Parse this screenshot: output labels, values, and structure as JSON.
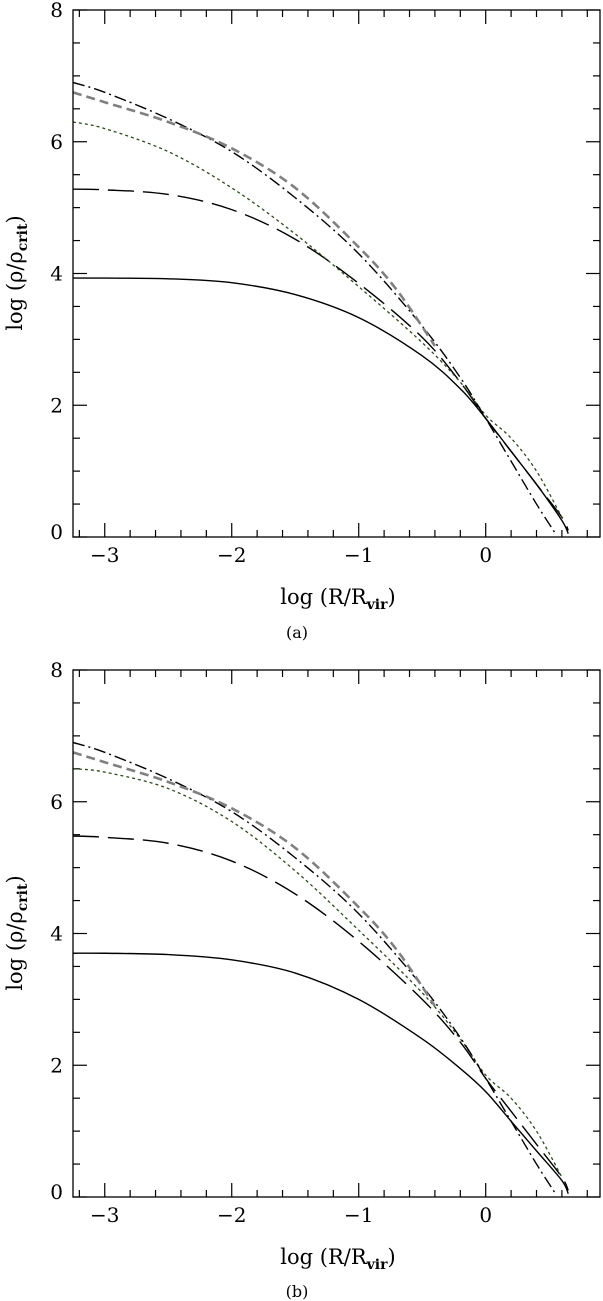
{
  "colors": {
    "black": "#000000",
    "grey": "#808080",
    "green_dotted": "#2e4a1e"
  },
  "chart_data": [
    {
      "type": "line",
      "caption": "(a)",
      "xlabel": "log (R/R_vir)",
      "xlabel_main": "log (R/R",
      "xlabel_sub": "vir",
      "xlabel_tail": ")",
      "ylabel": "log (ρ/ρ_crit)",
      "ylabel_main": "log (ρ/ρ",
      "ylabel_sub": "crit",
      "ylabel_tail": ")",
      "xlim": [
        -3.25,
        0.9
      ],
      "ylim": [
        0,
        8
      ],
      "xticks_major": [
        -3,
        -2,
        -1,
        0
      ],
      "xticks_minor": [
        -3.2,
        -2.8,
        -2.6,
        -2.4,
        -2.2,
        -1.8,
        -1.6,
        -1.4,
        -1.2,
        -0.8,
        -0.6,
        -0.4,
        -0.2,
        0.2,
        0.4,
        0.6,
        0.8
      ],
      "yticks_major": [
        0,
        2,
        4,
        6,
        8
      ],
      "yticks_minor": [
        0.5,
        1,
        1.5,
        2.5,
        3,
        3.5,
        4.5,
        5,
        5.5,
        6.5,
        7,
        7.5
      ],
      "xtick_labels": [
        "−3",
        "−2",
        "−1",
        "0"
      ],
      "ytick_labels": [
        "0",
        "2",
        "4",
        "6",
        "8"
      ],
      "series": [
        {
          "style": "solid",
          "color": "#000000",
          "x": [
            -3.25,
            -3.0,
            -2.5,
            -2.0,
            -1.5,
            -1.0,
            -0.5,
            -0.2,
            0.0,
            0.2,
            0.4,
            0.6,
            0.65
          ],
          "y": [
            3.93,
            3.93,
            3.92,
            3.86,
            3.68,
            3.33,
            2.75,
            2.25,
            1.8,
            1.3,
            0.8,
            0.25,
            0.05
          ]
        },
        {
          "style": "longdash",
          "color": "#000000",
          "x": [
            -3.25,
            -3.0,
            -2.5,
            -2.0,
            -1.5,
            -1.0,
            -0.5,
            -0.2,
            0.0,
            0.2,
            0.4,
            0.6,
            0.65
          ],
          "y": [
            5.28,
            5.27,
            5.2,
            4.97,
            4.52,
            3.85,
            3.03,
            2.35,
            1.8,
            1.3,
            0.8,
            0.3,
            0.1
          ]
        },
        {
          "style": "dotted",
          "color": "#2e4a1e",
          "x": [
            -3.25,
            -3.0,
            -2.5,
            -2.0,
            -1.5,
            -1.0,
            -0.5,
            -0.2,
            0.0,
            0.2,
            0.4,
            0.6
          ],
          "y": [
            6.3,
            6.2,
            5.85,
            5.3,
            4.6,
            3.8,
            2.95,
            2.35,
            1.85,
            1.5,
            1.0,
            0.3
          ]
        },
        {
          "style": "dashdot",
          "color": "#000000",
          "x": [
            -3.25,
            -3.0,
            -2.5,
            -2.0,
            -1.5,
            -1.0,
            -0.5,
            -0.2,
            0.0,
            0.2,
            0.4,
            0.55
          ],
          "y": [
            6.9,
            6.75,
            6.35,
            5.85,
            5.15,
            4.3,
            3.2,
            2.42,
            1.8,
            1.15,
            0.5,
            0.05
          ]
        },
        {
          "style": "dashed-grey",
          "color": "#808080",
          "x": [
            -3.25,
            -3.0,
            -2.5,
            -2.0,
            -1.5,
            -1.0,
            -0.7,
            -0.4
          ],
          "y": [
            6.75,
            6.6,
            6.3,
            5.9,
            5.3,
            4.4,
            3.75,
            2.9
          ]
        }
      ]
    },
    {
      "type": "line",
      "caption": "(b)",
      "xlabel": "log (R/R_vir)",
      "xlabel_main": "log (R/R",
      "xlabel_sub": "vir",
      "xlabel_tail": ")",
      "ylabel": "log (ρ/ρ_crit)",
      "ylabel_main": "log (ρ/ρ",
      "ylabel_sub": "crit",
      "ylabel_tail": ")",
      "xlim": [
        -3.25,
        0.9
      ],
      "ylim": [
        0,
        8
      ],
      "xticks_major": [
        -3,
        -2,
        -1,
        0
      ],
      "xticks_minor": [
        -3.2,
        -2.8,
        -2.6,
        -2.4,
        -2.2,
        -1.8,
        -1.6,
        -1.4,
        -1.2,
        -0.8,
        -0.6,
        -0.4,
        -0.2,
        0.2,
        0.4,
        0.6,
        0.8
      ],
      "yticks_major": [
        0,
        2,
        4,
        6,
        8
      ],
      "yticks_minor": [
        0.5,
        1,
        1.5,
        2.5,
        3,
        3.5,
        4.5,
        5,
        5.5,
        6.5,
        7,
        7.5
      ],
      "xtick_labels": [
        "−3",
        "−2",
        "−1",
        "0"
      ],
      "ytick_labels": [
        "0",
        "2",
        "4",
        "6",
        "8"
      ],
      "series": [
        {
          "style": "solid",
          "color": "#000000",
          "x": [
            -3.25,
            -3.0,
            -2.5,
            -2.0,
            -1.5,
            -1.0,
            -0.5,
            -0.2,
            0.0,
            0.2,
            0.4,
            0.6,
            0.65
          ],
          "y": [
            3.7,
            3.7,
            3.68,
            3.6,
            3.4,
            3.0,
            2.4,
            1.95,
            1.6,
            1.15,
            0.7,
            0.25,
            0.05
          ]
        },
        {
          "style": "longdash",
          "color": "#000000",
          "x": [
            -3.25,
            -3.0,
            -2.5,
            -2.0,
            -1.5,
            -1.0,
            -0.5,
            -0.2,
            0.0,
            0.2,
            0.4,
            0.6,
            0.65
          ],
          "y": [
            5.48,
            5.46,
            5.37,
            5.1,
            4.6,
            3.88,
            3.0,
            2.35,
            1.8,
            1.3,
            0.8,
            0.3,
            0.1
          ]
        },
        {
          "style": "dotted",
          "color": "#2e4a1e",
          "x": [
            -3.25,
            -3.0,
            -2.5,
            -2.0,
            -1.5,
            -1.0,
            -0.5,
            -0.2,
            0.0,
            0.2,
            0.4,
            0.6
          ],
          "y": [
            6.5,
            6.45,
            6.2,
            5.7,
            4.95,
            4.05,
            3.1,
            2.4,
            1.85,
            1.5,
            1.0,
            0.3
          ]
        },
        {
          "style": "dashdot",
          "color": "#000000",
          "x": [
            -3.25,
            -3.0,
            -2.5,
            -2.0,
            -1.5,
            -1.0,
            -0.5,
            -0.2,
            0.0,
            0.2,
            0.4,
            0.55
          ],
          "y": [
            6.9,
            6.75,
            6.35,
            5.85,
            5.15,
            4.3,
            3.2,
            2.42,
            1.8,
            1.15,
            0.5,
            0.05
          ]
        },
        {
          "style": "dashed-grey",
          "color": "#808080",
          "x": [
            -3.25,
            -3.0,
            -2.5,
            -2.0,
            -1.5,
            -1.0,
            -0.7,
            -0.4
          ],
          "y": [
            6.75,
            6.6,
            6.3,
            5.9,
            5.3,
            4.4,
            3.75,
            2.9
          ]
        }
      ]
    }
  ]
}
